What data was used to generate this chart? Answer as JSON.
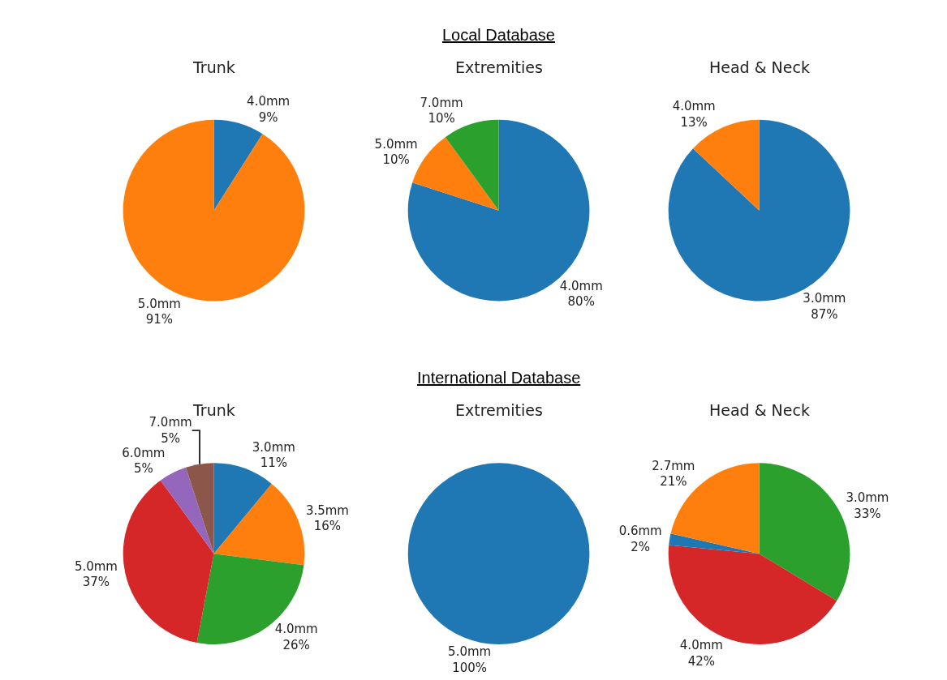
{
  "chart_data": [
    {
      "type": "pie",
      "title": "Trunk",
      "categories": [
        "4.0mm",
        "5.0mm"
      ],
      "values": [
        9,
        91
      ],
      "value_labels": [
        "9%",
        "91%"
      ],
      "colors": [
        "#1f77b4",
        "#ff7f0e"
      ]
    },
    {
      "type": "pie",
      "title": "Extremities",
      "annotations": [
        "Local Database"
      ],
      "categories": [
        "4.0mm",
        "5.0mm",
        "7.0mm"
      ],
      "values": [
        80,
        10,
        10
      ],
      "value_labels": [
        "80%",
        "10%",
        "10%"
      ],
      "colors": [
        "#1f77b4",
        "#ff7f0e",
        "#2ca02c"
      ]
    },
    {
      "type": "pie",
      "title": "Head & Neck",
      "categories": [
        "3.0mm",
        "4.0mm"
      ],
      "values": [
        87,
        13
      ],
      "value_labels": [
        "87%",
        "13%"
      ],
      "colors": [
        "#1f77b4",
        "#ff7f0e"
      ]
    },
    {
      "type": "pie",
      "title": "Trunk",
      "categories": [
        "3.0mm",
        "3.5mm",
        "4.0mm",
        "5.0mm",
        "6.0mm",
        "7.0mm"
      ],
      "values": [
        11,
        16,
        26,
        37,
        5,
        5
      ],
      "value_labels": [
        "11%",
        "16%",
        "26%",
        "37%",
        "5%",
        "5%"
      ],
      "colors": [
        "#1f77b4",
        "#ff7f0e",
        "#2ca02c",
        "#d62728",
        "#9467bd",
        "#8c564b"
      ]
    },
    {
      "type": "pie",
      "title": "Extremities",
      "annotations": [
        "International Database"
      ],
      "categories": [
        "5.0mm"
      ],
      "values": [
        100
      ],
      "value_labels": [
        "100%"
      ],
      "colors": [
        "#1f77b4"
      ]
    },
    {
      "type": "pie",
      "title": "Head & Neck",
      "categories": [
        "3.0mm",
        "4.0mm",
        "0.6mm",
        "2.7mm"
      ],
      "values": [
        33,
        42,
        2,
        21
      ],
      "value_labels": [
        "33%",
        "42%",
        "2%",
        "21%"
      ],
      "colors": [
        "#2ca02c",
        "#d62728",
        "#1f77b4",
        "#ff7f0e"
      ]
    }
  ]
}
